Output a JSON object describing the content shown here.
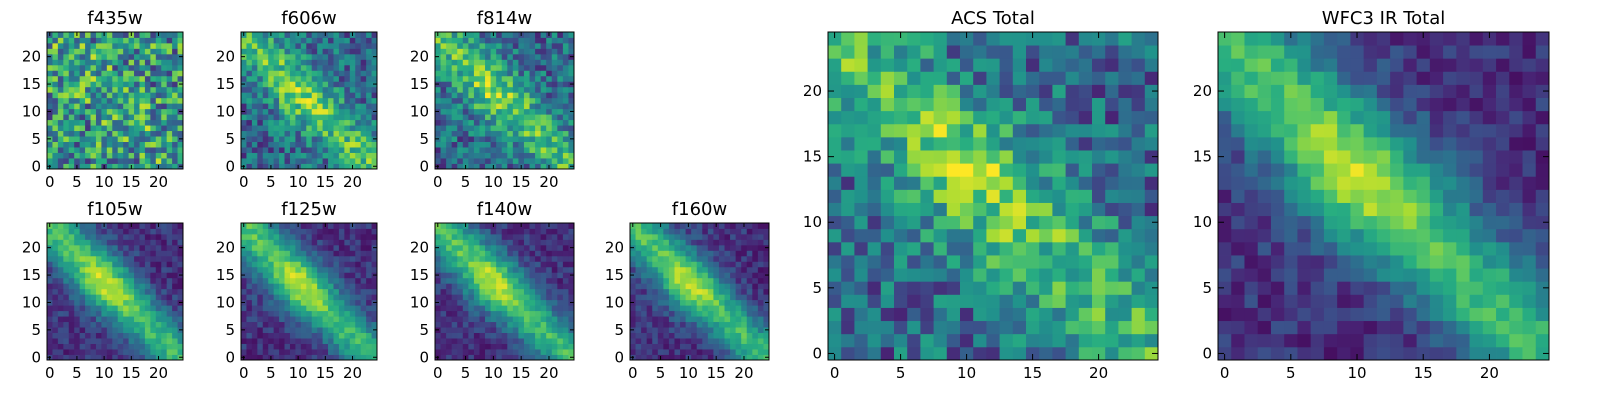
{
  "chart_data": [
    {
      "type": "heatmap",
      "title": "f435w",
      "xticks": [
        "0",
        "5",
        "10",
        "15",
        "20"
      ],
      "yticks": [
        "0",
        "5",
        "10",
        "15",
        "20"
      ],
      "xlim": [
        0,
        24
      ],
      "ylim": [
        0,
        24
      ],
      "colormap": "viridis",
      "pattern": "noisy"
    },
    {
      "type": "heatmap",
      "title": "f606w",
      "xticks": [
        "0",
        "5",
        "10",
        "15",
        "20"
      ],
      "yticks": [
        "0",
        "5",
        "10",
        "15",
        "20"
      ],
      "xlim": [
        0,
        24
      ],
      "ylim": [
        0,
        24
      ],
      "colormap": "viridis",
      "pattern": "diagonal-faint"
    },
    {
      "type": "heatmap",
      "title": "f814w",
      "xticks": [
        "0",
        "5",
        "10",
        "15",
        "20"
      ],
      "yticks": [
        "0",
        "5",
        "10",
        "15",
        "20"
      ],
      "xlim": [
        0,
        24
      ],
      "ylim": [
        0,
        24
      ],
      "colormap": "viridis",
      "pattern": "diagonal-faint"
    },
    {
      "type": "heatmap",
      "title": "f105w",
      "xticks": [
        "0",
        "5",
        "10",
        "15",
        "20"
      ],
      "yticks": [
        "0",
        "5",
        "10",
        "15",
        "20"
      ],
      "xlim": [
        0,
        24
      ],
      "ylim": [
        0,
        24
      ],
      "colormap": "viridis",
      "pattern": "diagonal"
    },
    {
      "type": "heatmap",
      "title": "f125w",
      "xticks": [
        "0",
        "5",
        "10",
        "15",
        "20"
      ],
      "yticks": [
        "0",
        "5",
        "10",
        "15",
        "20"
      ],
      "xlim": [
        0,
        24
      ],
      "ylim": [
        0,
        24
      ],
      "colormap": "viridis",
      "pattern": "diagonal"
    },
    {
      "type": "heatmap",
      "title": "f140w",
      "xticks": [
        "0",
        "5",
        "10",
        "15",
        "20"
      ],
      "yticks": [
        "0",
        "5",
        "10",
        "15",
        "20"
      ],
      "xlim": [
        0,
        24
      ],
      "ylim": [
        0,
        24
      ],
      "colormap": "viridis",
      "pattern": "diagonal"
    },
    {
      "type": "heatmap",
      "title": "f160w",
      "xticks": [
        "0",
        "5",
        "10",
        "15",
        "20"
      ],
      "yticks": [
        "0",
        "5",
        "10",
        "15",
        "20"
      ],
      "xlim": [
        0,
        24
      ],
      "ylim": [
        0,
        24
      ],
      "colormap": "viridis",
      "pattern": "diagonal"
    },
    {
      "type": "heatmap",
      "title": "ACS Total",
      "xticks": [
        "0",
        "5",
        "10",
        "15",
        "20"
      ],
      "yticks": [
        "0",
        "5",
        "10",
        "15",
        "20"
      ],
      "xlim": [
        0,
        24
      ],
      "ylim": [
        0,
        24
      ],
      "colormap": "viridis",
      "pattern": "diagonal-faint"
    },
    {
      "type": "heatmap",
      "title": "WFC3 IR Total",
      "xticks": [
        "0",
        "5",
        "10",
        "15",
        "20"
      ],
      "yticks": [
        "0",
        "5",
        "10",
        "15",
        "20"
      ],
      "xlim": [
        0,
        24
      ],
      "ylim": [
        0,
        24
      ],
      "colormap": "viridis",
      "pattern": "diagonal"
    }
  ]
}
